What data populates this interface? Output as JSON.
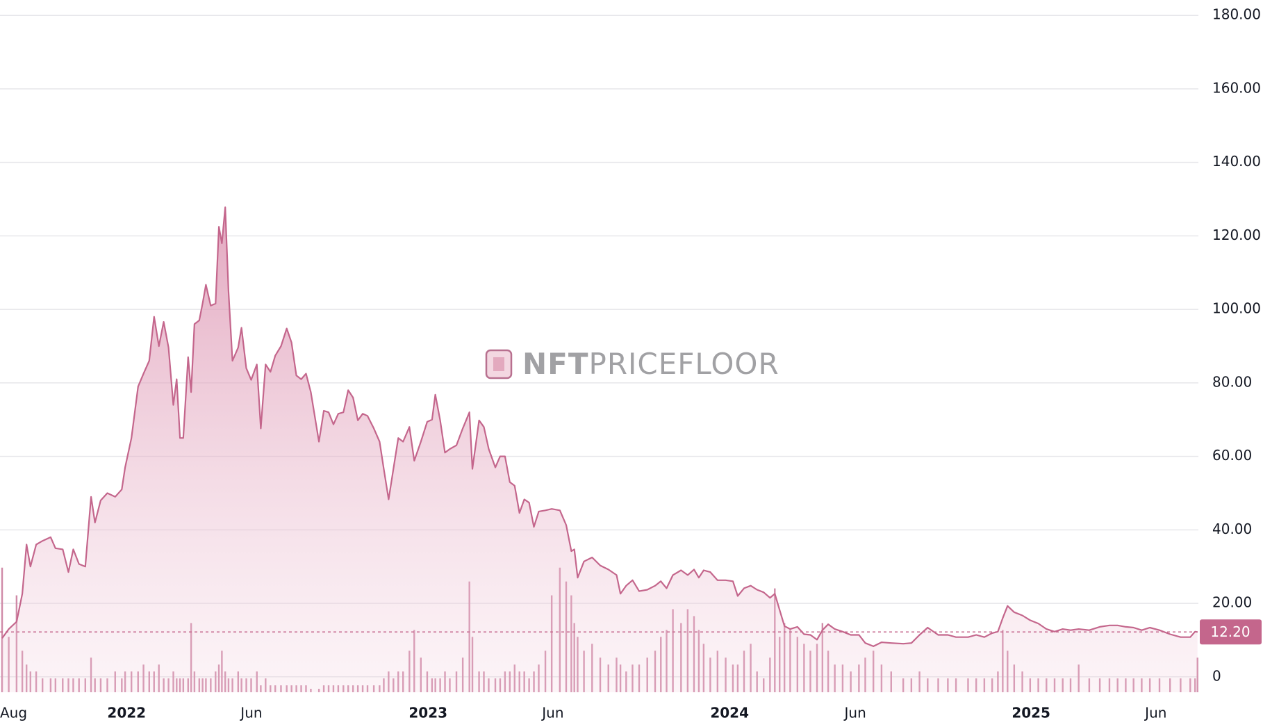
{
  "chart_data": {
    "type": "area",
    "y_axis_side": "right",
    "grid": true,
    "watermark_bold": "NFT",
    "watermark_text": "PRICEFLOOR",
    "xlim": [
      2021.58,
      2025.555
    ],
    "xticks": [
      {
        "value": 2021.583,
        "label": "Aug"
      },
      {
        "value": 2022,
        "label": "2022"
      },
      {
        "value": 2022.414,
        "label": "Jun"
      },
      {
        "value": 2023,
        "label": "2023"
      },
      {
        "value": 2023.414,
        "label": "Jun"
      },
      {
        "value": 2024,
        "label": "2024"
      },
      {
        "value": 2024.417,
        "label": "Jun"
      },
      {
        "value": 2025,
        "label": "2025"
      },
      {
        "value": 2025.414,
        "label": "Jun"
      }
    ],
    "ylim": [
      -4.2,
      184.2
    ],
    "yticks": [
      0,
      {
        "value": 20,
        "label": "20.00"
      },
      {
        "value": 40,
        "label": "40.00"
      },
      {
        "value": 60,
        "label": "60.00"
      },
      {
        "value": 80,
        "label": "80.00"
      },
      {
        "value": 100,
        "label": "100.00"
      },
      {
        "value": 120,
        "label": "120.00"
      },
      {
        "value": 140,
        "label": "140.00"
      },
      {
        "value": 160,
        "label": "160.00"
      },
      {
        "value": 180,
        "label": "180.00"
      }
    ],
    "y2lim": [
      0,
      100
    ],
    "last_value": {
      "value": 12.2,
      "label": "12.20"
    },
    "x": [
      2021.587,
      2021.609,
      2021.635,
      2021.654,
      2021.668,
      2021.681,
      2021.7,
      2021.721,
      2021.748,
      2021.764,
      2021.788,
      2021.807,
      2021.823,
      2021.842,
      2021.863,
      2021.882,
      2021.895,
      2021.914,
      2021.936,
      2021.962,
      2021.984,
      2021.995,
      2022.016,
      2022.038,
      2022.056,
      2022.075,
      2022.091,
      2022.107,
      2022.123,
      2022.139,
      2022.155,
      2022.166,
      2022.177,
      2022.188,
      2022.204,
      2022.214,
      2022.225,
      2022.241,
      2022.252,
      2022.263,
      2022.279,
      2022.295,
      2022.306,
      2022.316,
      2022.327,
      2022.338,
      2022.351,
      2022.37,
      2022.381,
      2022.397,
      2022.413,
      2022.432,
      2022.445,
      2022.461,
      2022.477,
      2022.493,
      2022.512,
      2022.531,
      2022.547,
      2022.563,
      2022.579,
      2022.595,
      2022.611,
      2022.638,
      2022.654,
      2022.67,
      2022.686,
      2022.702,
      2022.719,
      2022.735,
      2022.751,
      2022.767,
      2022.783,
      2022.799,
      2022.82,
      2022.839,
      2022.853,
      2022.869,
      2022.885,
      2022.901,
      2022.917,
      2022.938,
      2022.954,
      2022.976,
      2022.997,
      2023.013,
      2023.024,
      2023.04,
      2023.056,
      2023.072,
      2023.094,
      2023.115,
      2023.137,
      2023.147,
      2023.169,
      2023.185,
      2023.201,
      2023.223,
      2023.239,
      2023.255,
      2023.271,
      2023.287,
      2023.303,
      2023.319,
      2023.335,
      2023.351,
      2023.367,
      2023.389,
      2023.41,
      2023.437,
      2023.458,
      2023.475,
      2023.485,
      2023.496,
      2023.517,
      2023.544,
      2023.571,
      2023.598,
      2023.625,
      2023.638,
      2023.657,
      2023.678,
      2023.7,
      2023.727,
      2023.753,
      2023.772,
      2023.791,
      2023.812,
      2023.839,
      2023.861,
      2023.882,
      2023.898,
      2023.914,
      2023.936,
      2023.96,
      2023.987,
      2024.011,
      2024.027,
      2024.048,
      2024.07,
      2024.091,
      2024.113,
      2024.134,
      2024.15,
      2024.166,
      2024.182,
      2024.201,
      2024.225,
      2024.247,
      2024.268,
      2024.29,
      2024.308,
      2024.327,
      2024.349,
      2024.375,
      2024.402,
      2024.429,
      2024.45,
      2024.477,
      2024.504,
      2024.536,
      2024.576,
      2024.603,
      2024.63,
      2024.657,
      2024.692,
      2024.724,
      2024.751,
      2024.791,
      2024.818,
      2024.845,
      2024.871,
      2024.89,
      2024.906,
      2024.922,
      2024.944,
      2024.971,
      2024.997,
      2025.024,
      2025.051,
      2025.078,
      2025.105,
      2025.131,
      2025.158,
      2025.193,
      2025.228,
      2025.26,
      2025.287,
      2025.314,
      2025.34,
      2025.367,
      2025.394,
      2025.426,
      2025.461,
      2025.496,
      2025.528,
      2025.544,
      2025.552
    ],
    "series": [
      {
        "color": "#c4668c",
        "values": [
          10.5,
          13,
          15,
          22.6,
          36,
          30,
          36,
          37,
          38,
          35,
          34.7,
          28.5,
          34.7,
          30.7,
          30,
          49,
          42,
          48,
          50,
          49,
          51,
          57,
          65,
          79,
          82.5,
          86,
          98,
          90,
          96.6,
          89.6,
          74,
          81,
          65,
          65,
          87,
          77.5,
          96,
          97,
          101.6,
          106.7,
          101,
          101.6,
          122.5,
          118,
          127.8,
          105,
          86,
          89.6,
          95,
          84,
          80.8,
          85,
          67.6,
          85,
          83,
          87.4,
          90,
          94.8,
          91,
          82,
          81,
          82.5,
          77.5,
          64,
          72.4,
          72,
          68.7,
          71.6,
          72,
          78,
          76,
          69.8,
          71.6,
          71,
          67.6,
          64,
          56.6,
          48.3,
          56.6,
          65,
          64,
          68,
          58.8,
          64,
          69.4,
          70,
          76.8,
          69.8,
          61,
          62,
          63,
          67.6,
          72,
          56.6,
          69.8,
          68,
          62,
          57,
          60,
          60,
          53,
          52,
          44.6,
          48.3,
          47.4,
          40.8,
          45,
          45.3,
          45.7,
          45.3,
          41.3,
          34.2,
          34.7,
          27,
          31.4,
          32.5,
          30.3,
          29.2,
          27.7,
          22.6,
          24.8,
          26.3,
          23.3,
          23.7,
          24.8,
          26,
          24.1,
          27.7,
          29,
          27.7,
          29.2,
          27,
          29,
          28.5,
          26.3,
          26.3,
          26,
          22,
          24.1,
          24.8,
          23.7,
          23,
          21.5,
          22.6,
          18.2,
          13.8,
          13,
          13.6,
          11.6,
          11.4,
          10.1,
          12.7,
          14.3,
          13,
          12.3,
          11.4,
          11.4,
          9.2,
          8.3,
          9.4,
          9.2,
          9,
          9.2,
          11.4,
          13.4,
          11.4,
          11.4,
          10.8,
          10.8,
          11.4,
          10.8,
          11.9,
          12.3,
          16,
          19.3,
          17.6,
          16.7,
          15.4,
          14.5,
          13,
          12.3,
          13,
          12.7,
          13,
          12.7,
          13.6,
          14,
          14,
          13.6,
          13.4,
          12.7,
          13.4,
          12.7,
          11.6,
          10.8,
          10.8,
          12.3,
          12.2
        ]
      },
      {
        "color": "#cf8aa7",
        "axis": "y2",
        "values": [
          18,
          8,
          14,
          6,
          4,
          3,
          3,
          2,
          2,
          2,
          2,
          2,
          2,
          2,
          2,
          5,
          2,
          2,
          2,
          3,
          2,
          3,
          3,
          3,
          4,
          3,
          3,
          4,
          2,
          2,
          3,
          2,
          2,
          2,
          2,
          10,
          3,
          2,
          2,
          2,
          2,
          3,
          4,
          6,
          3,
          2,
          2,
          3,
          2,
          2,
          2,
          3,
          1,
          2,
          1,
          1,
          1,
          1,
          1,
          1,
          1,
          1,
          0.5,
          0.5,
          1,
          1,
          1,
          1,
          1,
          1,
          1,
          1,
          1,
          1,
          1,
          1,
          2,
          3,
          2,
          3,
          3,
          6,
          9,
          5,
          3,
          2,
          2,
          2,
          3,
          2,
          3,
          5,
          16,
          8,
          3,
          3,
          2,
          2,
          2,
          3,
          3,
          4,
          3,
          3,
          2,
          3,
          4,
          6,
          14,
          18,
          16,
          14,
          10,
          8,
          6,
          7,
          5,
          4,
          5,
          4,
          3,
          4,
          4,
          5,
          6,
          8,
          9,
          12,
          10,
          12,
          11,
          9,
          7,
          5,
          6,
          5,
          4,
          4,
          6,
          7,
          3,
          2,
          5,
          15,
          8,
          10,
          9,
          8,
          7,
          6,
          7,
          10,
          6,
          4,
          4,
          3,
          4,
          5,
          6,
          4,
          3,
          2,
          2,
          3,
          2,
          2,
          2,
          2,
          2,
          2,
          2,
          2,
          3,
          9,
          6,
          4,
          3,
          2,
          2,
          2,
          2,
          2,
          2,
          4,
          2,
          2,
          2,
          2,
          2,
          2,
          2,
          2,
          2,
          2,
          2,
          2,
          2,
          5
        ]
      }
    ]
  }
}
